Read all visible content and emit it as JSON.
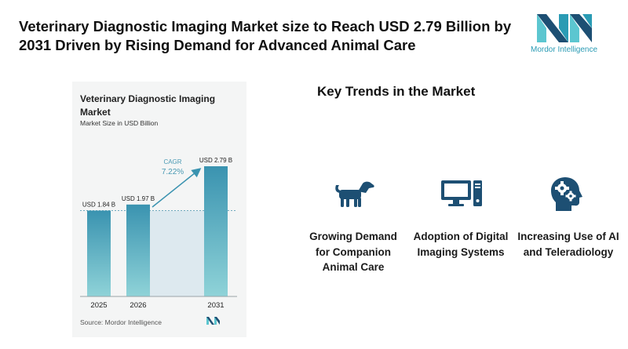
{
  "header": {
    "title": "Veterinary Diagnostic Imaging Market size to Reach USD 2.79 Billion by 2031 Driven by Rising Demand for Advanced Animal Care",
    "brand": "Mordor Intelligence"
  },
  "chart": {
    "title": "Veterinary Diagnostic Imaging Market",
    "subtitle": "Market Size in USD Billion",
    "source": "Source: Mordor Intelligence",
    "cagr_label": "CAGR",
    "cagr_value": "7.22%"
  },
  "chart_data": {
    "type": "bar",
    "title": "Veterinary Diagnostic Imaging Market",
    "ylabel": "Market Size in USD Billion",
    "categories": [
      "2025",
      "2026",
      "2031"
    ],
    "values": [
      1.84,
      1.97,
      2.79
    ],
    "value_labels": [
      "USD 1.84 B",
      "USD 1.97 B",
      "USD 2.79 B"
    ],
    "ylim": [
      0,
      2.79
    ],
    "annotations": [
      "CAGR",
      "7.22%"
    ],
    "colors": {
      "bar_top": "#3a93b0",
      "bar_bottom": "#8fd3d8",
      "arrow": "#3a93b0"
    }
  },
  "trends": {
    "title": "Key Trends in the Market",
    "items": [
      {
        "icon": "dog-icon",
        "label": "Growing Demand for Companion Animal Care"
      },
      {
        "icon": "computer-icon",
        "label": "Adoption of Digital Imaging Systems"
      },
      {
        "icon": "ai-head-gears-icon",
        "label": "Increasing Use of AI and Teleradiology"
      }
    ]
  },
  "colors": {
    "icon": "#1d4f73",
    "accent": "#2a9bb4",
    "logo_dark": "#1d4f73",
    "logo_light": "#5cc6d0"
  }
}
